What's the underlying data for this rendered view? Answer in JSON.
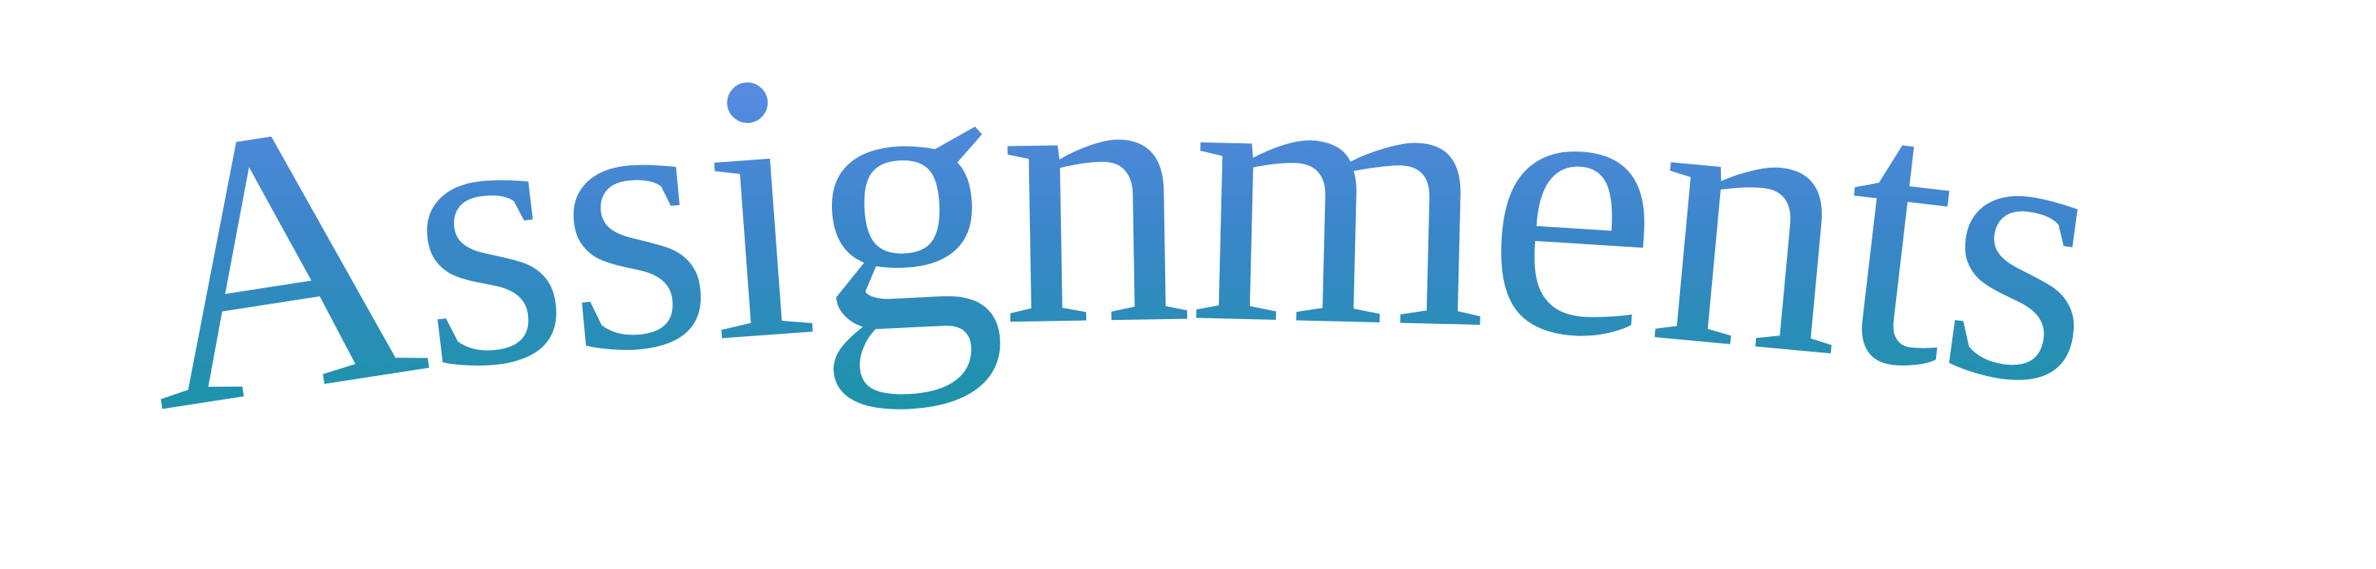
{
  "wordart": {
    "text": "Assignments",
    "gradient_top_color": "#6C8EF2",
    "gradient_mid_color": "#3A86C9",
    "gradient_bottom_color": "#0E9A9A"
  }
}
